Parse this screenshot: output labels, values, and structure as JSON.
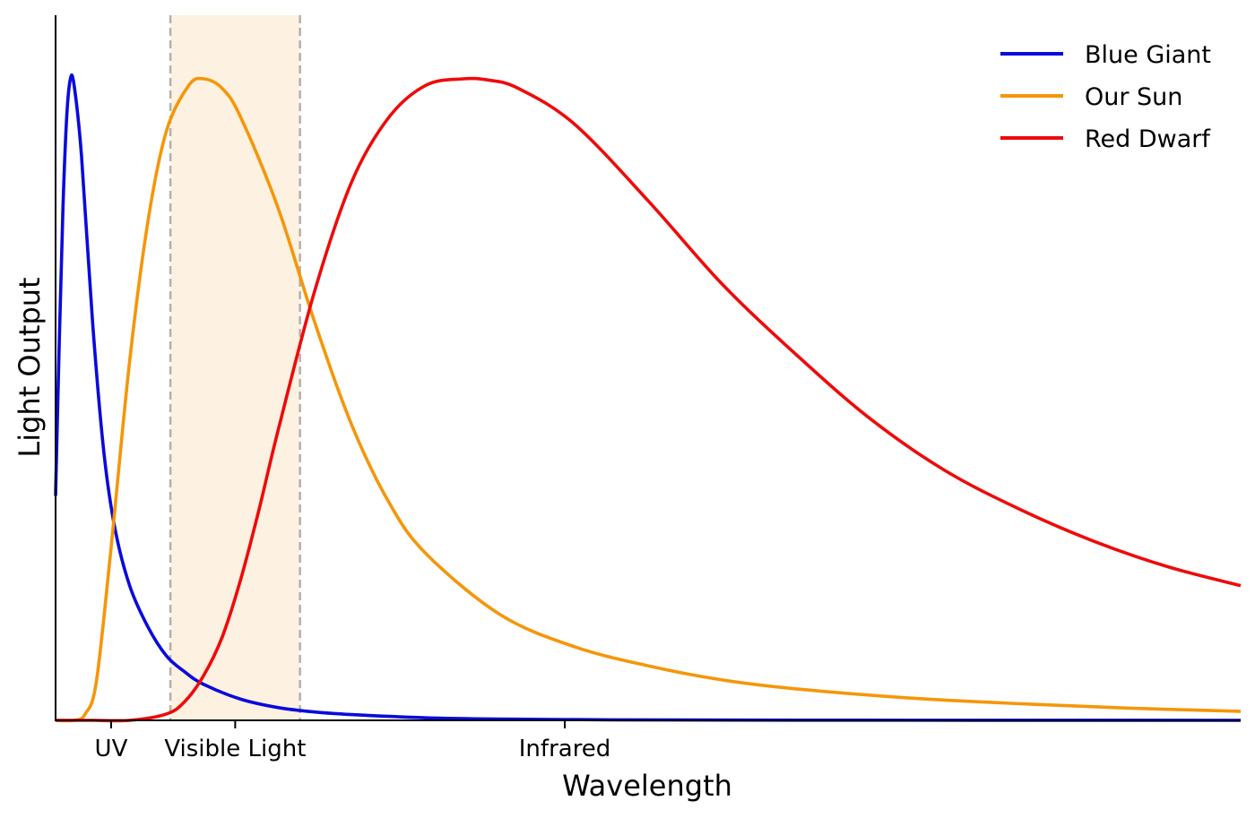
{
  "chart_data": {
    "type": "line",
    "title": "",
    "xlabel": "Wavelength",
    "ylabel": "Light Output",
    "xlim": [
      0,
      3.2
    ],
    "ylim": [
      0,
      1.1
    ],
    "x_ticks": [
      {
        "x": 0.15,
        "label": "UV"
      },
      {
        "x": 0.485,
        "label": "Visible Light"
      },
      {
        "x": 1.375,
        "label": "Infrared"
      }
    ],
    "shaded_band": {
      "label": "Visible Light",
      "x_start": 0.31,
      "x_end": 0.66,
      "color": "#fdf1e1",
      "edge_color": "#b5b0aa"
    },
    "legend_position": "top-right",
    "grid": false,
    "series": [
      {
        "name": "Blue Giant",
        "color": "#0a0adc",
        "x": [
          0.0,
          0.01,
          0.02,
          0.03,
          0.04,
          0.05,
          0.07,
          0.1,
          0.13,
          0.16,
          0.2,
          0.25,
          0.3,
          0.35,
          0.4,
          0.5,
          0.6,
          0.7,
          0.8,
          1.0,
          1.2,
          1.5,
          2.0,
          2.5,
          3.2
        ],
        "values": [
          0.35,
          0.59,
          0.8,
          0.94,
          1.0,
          0.99,
          0.88,
          0.62,
          0.42,
          0.3,
          0.21,
          0.145,
          0.1,
          0.075,
          0.056,
          0.033,
          0.02,
          0.013,
          0.009,
          0.004,
          0.002,
          0.0008,
          0.0003,
          0.0001,
          0.0
        ]
      },
      {
        "name": "Our Sun",
        "color": "#f5960a",
        "x": [
          0.0,
          0.05,
          0.08,
          0.11,
          0.15,
          0.2,
          0.25,
          0.3,
          0.36,
          0.4,
          0.45,
          0.5,
          0.6,
          0.7,
          0.8,
          0.9,
          1.0,
          1.2,
          1.4,
          1.6,
          1.8,
          2.0,
          2.3,
          2.6,
          2.9,
          3.2
        ],
        "values": [
          0.0,
          0.0,
          0.01,
          0.06,
          0.27,
          0.56,
          0.78,
          0.92,
          0.99,
          1.0,
          0.985,
          0.94,
          0.8,
          0.62,
          0.46,
          0.34,
          0.26,
          0.165,
          0.115,
          0.085,
          0.063,
          0.049,
          0.035,
          0.026,
          0.019,
          0.014
        ]
      },
      {
        "name": "Red Dwarf",
        "color": "#ee0b0b",
        "x": [
          0.0,
          0.1,
          0.2,
          0.3,
          0.35,
          0.4,
          0.45,
          0.5,
          0.55,
          0.6,
          0.7,
          0.8,
          0.9,
          1.0,
          1.1,
          1.17,
          1.25,
          1.4,
          1.6,
          1.8,
          2.0,
          2.2,
          2.4,
          2.6,
          2.8,
          3.0,
          3.2
        ],
        "values": [
          0.0,
          0.0,
          0.0,
          0.01,
          0.03,
          0.07,
          0.13,
          0.22,
          0.33,
          0.45,
          0.67,
          0.84,
          0.94,
          0.99,
          1.0,
          0.998,
          0.985,
          0.93,
          0.81,
          0.68,
          0.57,
          0.47,
          0.39,
          0.33,
          0.28,
          0.24,
          0.21
        ]
      }
    ]
  }
}
